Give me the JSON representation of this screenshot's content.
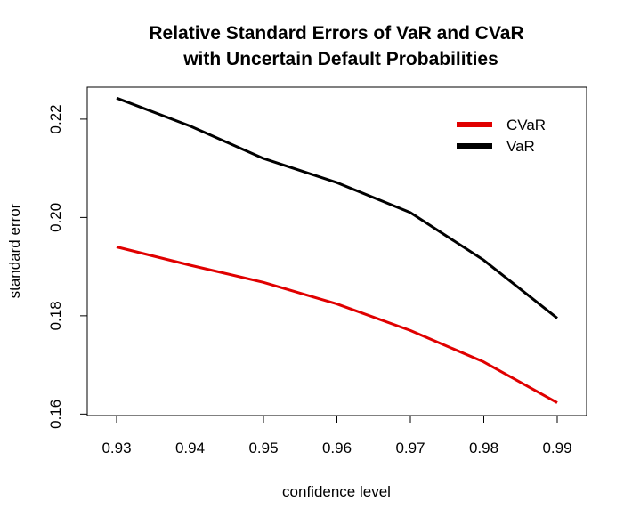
{
  "chart_data": {
    "type": "line",
    "title_lines": [
      "Relative Standard Errors of VaR and CVaR",
      "with Uncertain Default Probabilities"
    ],
    "xlabel": "confidence level",
    "ylabel": "standard error",
    "x": [
      0.93,
      0.94,
      0.95,
      0.96,
      0.97,
      0.98,
      0.99
    ],
    "x_tick_labels": [
      "0.93",
      "0.94",
      "0.95",
      "0.96",
      "0.97",
      "0.98",
      "0.99"
    ],
    "y_ticks": [
      0.16,
      0.18,
      0.2,
      0.22
    ],
    "y_tick_labels": [
      "0.16",
      "0.18",
      "0.20",
      "0.22"
    ],
    "xlim": [
      0.926,
      0.994
    ],
    "ylim": [
      0.1597,
      0.2265
    ],
    "grid": false,
    "legend_position": "top-right",
    "series": [
      {
        "name": "CVaR",
        "color": "#e00000",
        "values": [
          0.194,
          0.1903,
          0.1868,
          0.1824,
          0.177,
          0.1706,
          0.1623
        ]
      },
      {
        "name": "VaR",
        "color": "#000000",
        "values": [
          0.2243,
          0.2186,
          0.212,
          0.2071,
          0.201,
          0.1913,
          0.1795
        ]
      }
    ]
  }
}
